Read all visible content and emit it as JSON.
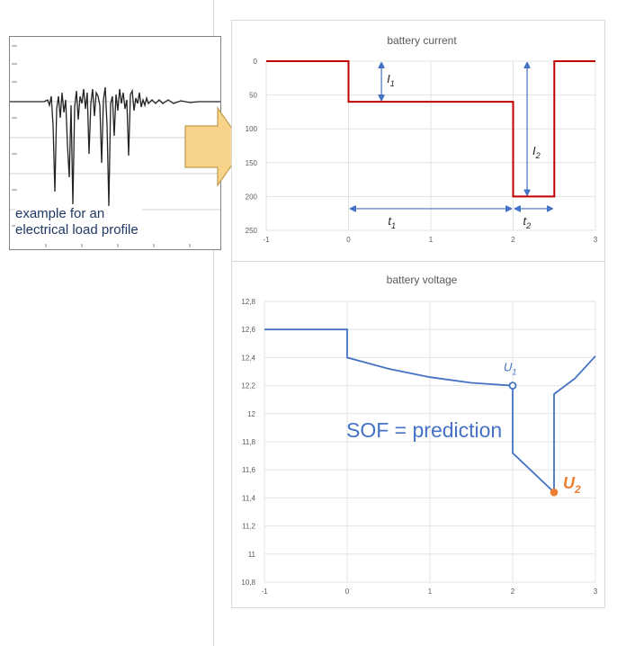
{
  "load_profile": {
    "caption_line1": "example  for an",
    "caption_line2": "electrical load profile"
  },
  "arrow": {
    "fill": "#f8d48a",
    "stroke": "#c09a4a"
  },
  "chart_data": [
    {
      "type": "line",
      "title": "battery current",
      "xlim": [
        -1,
        3
      ],
      "ylim": [
        0,
        250
      ],
      "y_inverted": true,
      "x_ticks": [
        "-1",
        "0",
        "1",
        "2",
        "3"
      ],
      "y_ticks": [
        "0",
        "50",
        "100",
        "150",
        "200",
        "250"
      ],
      "grid": true,
      "color": "#c00000",
      "series": [
        {
          "x": [
            -1,
            0,
            0,
            2,
            2,
            2.5,
            2.5,
            3
          ],
          "y": [
            0,
            0,
            60,
            60,
            200,
            200,
            0,
            0
          ]
        }
      ],
      "annotations": {
        "I1": "I",
        "I1_sub": "1",
        "I2": "I",
        "I2_sub": "2",
        "t1": "t",
        "t1_sub": "1",
        "t2": "t",
        "t2_sub": "2"
      }
    },
    {
      "type": "line",
      "title": "battery voltage",
      "xlim": [
        -1,
        3
      ],
      "ylim": [
        10.8,
        12.8
      ],
      "x_ticks": [
        "-1",
        "0",
        "1",
        "2",
        "3"
      ],
      "y_ticks": [
        "10,8",
        "11",
        "11,2",
        "11,4",
        "11,6",
        "11,8",
        "12",
        "12,2",
        "12,4",
        "12,6",
        "12,8"
      ],
      "grid": true,
      "color": "#4472c4",
      "series": [
        {
          "x": [
            -1,
            0,
            0,
            0.5,
            1,
            1.5,
            2,
            2,
            2.5,
            2.5,
            2.75,
            3
          ],
          "y": [
            12.6,
            12.6,
            12.4,
            12.32,
            12.26,
            12.22,
            12.2,
            11.72,
            11.44,
            12.14,
            12.25,
            12.41
          ]
        }
      ],
      "points": {
        "U1": {
          "x": 2,
          "y": 12.2,
          "label": "U",
          "sub": "1",
          "color": "#4472c4"
        },
        "U2": {
          "x": 2.5,
          "y": 11.44,
          "label": "U",
          "sub": "2",
          "color": "#ed7d31"
        }
      },
      "annotation_text": "SOF = prediction"
    }
  ]
}
